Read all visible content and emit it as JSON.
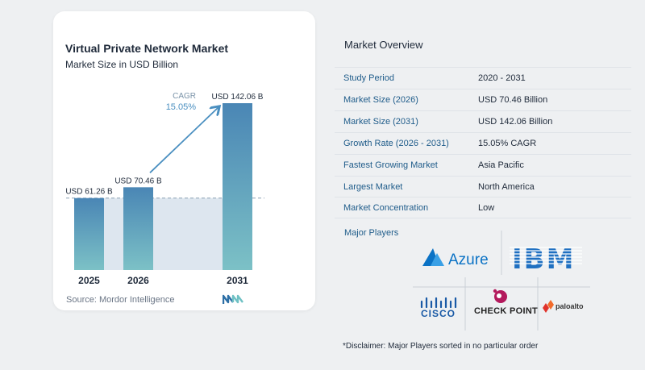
{
  "chart_card": {
    "title": "Virtual Private Network Market",
    "subtitle": "Market Size in USD Billion",
    "source": "Source:  Mordor Intelligence"
  },
  "chart_data": {
    "type": "bar",
    "title": "Virtual Private Network Market",
    "subtitle": "Market Size in USD Billion",
    "categories": [
      "2025",
      "2026",
      "2031"
    ],
    "values": [
      61.26,
      70.46,
      142.06
    ],
    "value_labels": [
      "USD 61.26 B",
      "USD 70.46 B",
      "USD 142.06 B"
    ],
    "ylim": [
      0,
      150
    ],
    "cagr_label": "CAGR",
    "cagr_value": "15.05%",
    "grid": false,
    "colors": {
      "bar_top": "#4a86b5",
      "bar_bottom": "#7cc1c6",
      "arrow": "#4a8fc0",
      "baseline_band": "#dde6ef",
      "dash": "#8aa0b4"
    }
  },
  "overview": {
    "title": "Market Overview",
    "rows": [
      {
        "label": "Study Period",
        "value": "2020 - 2031"
      },
      {
        "label": "Market Size (2026)",
        "value": "USD 70.46 Billion"
      },
      {
        "label": "Market Size (2031)",
        "value": "USD 142.06 Billion"
      },
      {
        "label": "Growth Rate (2026 - 2031)",
        "value": "15.05% CAGR"
      },
      {
        "label": "Fastest Growing Market",
        "value": "Asia Pacific"
      },
      {
        "label": "Largest Market",
        "value": "North America"
      },
      {
        "label": "Market Concentration",
        "value": "Low"
      }
    ]
  },
  "players": {
    "title": "Major Players",
    "logos": [
      {
        "name": "Azure",
        "text": "Azure",
        "icon": "azure-logo",
        "color": "#0a72c5"
      },
      {
        "name": "IBM",
        "text": "IBM",
        "icon": "ibm-logo",
        "color": "#1f70c1"
      },
      {
        "name": "Cisco",
        "text": "CISCO",
        "icon": "cisco-logo",
        "color": "#1a5aa6"
      },
      {
        "name": "Check Point",
        "text": "CHECK POINT",
        "icon": "checkpoint-logo",
        "color": "#b3195c"
      },
      {
        "name": "Palo Alto",
        "text": "paloalto",
        "icon": "paloalto-logo",
        "color": "#e0322b"
      }
    ]
  },
  "disclaimer": "*Disclaimer: Major Players sorted in no particular order"
}
